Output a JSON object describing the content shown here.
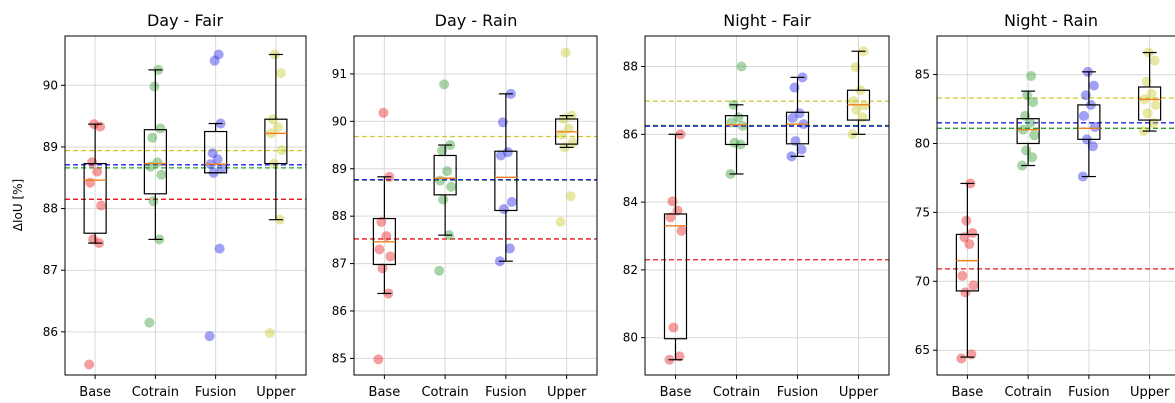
{
  "figure": {
    "ylabel": "ΔIoU [%]"
  },
  "colors": {
    "Base": "#e8181c",
    "Cotrain": "#2e9a2e",
    "Fusion": "#1f1fe8",
    "Upper": "#c9c928",
    "median": "#f07f1c",
    "box": "#000000",
    "grid": "#d9d9d9"
  },
  "chart_data": [
    {
      "type": "box+strip",
      "title": "Day - Fair",
      "categories": [
        "Base",
        "Cotrain",
        "Fusion",
        "Upper"
      ],
      "ylim": [
        85.3,
        90.8
      ],
      "yticks": [
        86,
        87,
        88,
        89,
        90
      ],
      "grid": true,
      "reference_lines": {
        "Base": 88.15,
        "Cotrain": 88.66,
        "Fusion": 88.71,
        "Upper": 88.94
      },
      "boxes": [
        {
          "q1": 87.6,
          "median": 88.46,
          "q3": 88.73,
          "whisker_low": 87.44,
          "whisker_high": 89.37
        },
        {
          "q1": 88.24,
          "median": 88.73,
          "q3": 89.28,
          "whisker_low": 87.5,
          "whisker_high": 90.25
        },
        {
          "q1": 88.58,
          "median": 88.72,
          "q3": 89.25,
          "whisker_low": 88.58,
          "whisker_high": 89.38
        },
        {
          "q1": 88.73,
          "median": 89.22,
          "q3": 89.45,
          "whisker_low": 87.82,
          "whisker_high": 90.5
        }
      ],
      "points": [
        [
          85.47,
          87.44,
          87.5,
          88.05,
          88.42,
          88.6,
          88.75,
          89.33,
          89.37
        ],
        [
          86.15,
          87.5,
          88.12,
          88.55,
          88.68,
          88.75,
          89.15,
          89.3,
          89.98,
          90.25
        ],
        [
          85.93,
          87.35,
          88.58,
          88.65,
          88.72,
          88.8,
          88.9,
          89.38,
          90.4,
          90.5
        ],
        [
          85.98,
          87.82,
          88.73,
          88.95,
          89.22,
          89.32,
          89.45,
          90.2,
          90.5
        ]
      ]
    },
    {
      "type": "box+strip",
      "title": "Day - Rain",
      "categories": [
        "Base",
        "Cotrain",
        "Fusion",
        "Upper"
      ],
      "ylim": [
        84.65,
        91.8
      ],
      "yticks": [
        85,
        86,
        87,
        88,
        89,
        90,
        91
      ],
      "grid": true,
      "reference_lines": {
        "Base": 87.52,
        "Cotrain": 88.76,
        "Fusion": 88.77,
        "Upper": 89.68
      },
      "boxes": [
        {
          "q1": 86.98,
          "median": 87.46,
          "q3": 87.95,
          "whisker_low": 86.37,
          "whisker_high": 88.83
        },
        {
          "q1": 88.45,
          "median": 88.8,
          "q3": 89.28,
          "whisker_low": 87.6,
          "whisker_high": 89.5
        },
        {
          "q1": 88.12,
          "median": 88.82,
          "q3": 89.37,
          "whisker_low": 87.05,
          "whisker_high": 90.58
        },
        {
          "q1": 89.52,
          "median": 89.78,
          "q3": 90.05,
          "whisker_low": 89.45,
          "whisker_high": 90.12
        }
      ],
      "points": [
        [
          84.98,
          86.37,
          86.9,
          87.15,
          87.3,
          87.58,
          87.88,
          88.83,
          90.18
        ],
        [
          86.85,
          87.6,
          88.35,
          88.62,
          88.75,
          88.95,
          89.38,
          89.5,
          90.78
        ],
        [
          87.05,
          87.32,
          88.15,
          88.3,
          89.28,
          89.35,
          89.98,
          90.58
        ],
        [
          87.88,
          88.42,
          89.45,
          89.55,
          89.72,
          89.85,
          90.05,
          90.12,
          91.45
        ]
      ]
    },
    {
      "type": "box+strip",
      "title": "Night - Fair",
      "categories": [
        "Base",
        "Cotrain",
        "Fusion",
        "Upper"
      ],
      "ylim": [
        78.9,
        88.9
      ],
      "yticks": [
        80,
        82,
        84,
        86,
        88
      ],
      "grid": true,
      "reference_lines": {
        "Base": 82.3,
        "Cotrain": 86.26,
        "Fusion": 86.24,
        "Upper": 86.98
      },
      "boxes": [
        {
          "q1": 79.97,
          "median": 83.3,
          "q3": 83.65,
          "whisker_low": 79.35,
          "whisker_high": 86.0
        },
        {
          "q1": 85.7,
          "median": 86.28,
          "q3": 86.55,
          "whisker_low": 84.83,
          "whisker_high": 86.87
        },
        {
          "q1": 85.72,
          "median": 86.3,
          "q3": 86.65,
          "whisker_low": 85.35,
          "whisker_high": 87.68
        },
        {
          "q1": 86.42,
          "median": 86.87,
          "q3": 87.3,
          "whisker_low": 86.0,
          "whisker_high": 88.45
        }
      ],
      "points": [
        [
          79.35,
          79.45,
          80.3,
          83.15,
          83.55,
          83.75,
          84.02,
          86.0
        ],
        [
          84.83,
          85.7,
          85.75,
          86.25,
          86.35,
          86.5,
          86.87,
          88.0
        ],
        [
          85.35,
          85.55,
          85.8,
          86.3,
          86.48,
          86.62,
          87.38,
          87.68
        ],
        [
          86.0,
          86.5,
          86.72,
          86.85,
          86.98,
          87.3,
          87.98,
          88.45
        ]
      ]
    },
    {
      "type": "box+strip",
      "title": "Night - Rain",
      "categories": [
        "Base",
        "Cotrain",
        "Fusion",
        "Upper"
      ],
      "ylim": [
        63.2,
        87.8
      ],
      "yticks": [
        65,
        70,
        75,
        80,
        85
      ],
      "grid": true,
      "reference_lines": {
        "Base": 70.9,
        "Cotrain": 81.1,
        "Fusion": 81.5,
        "Upper": 83.3
      },
      "boxes": [
        {
          "q1": 69.3,
          "median": 71.5,
          "q3": 73.4,
          "whisker_low": 64.5,
          "whisker_high": 77.1
        },
        {
          "q1": 80.0,
          "median": 81.0,
          "q3": 81.8,
          "whisker_low": 78.4,
          "whisker_high": 83.8
        },
        {
          "q1": 80.3,
          "median": 81.1,
          "q3": 82.8,
          "whisker_low": 77.6,
          "whisker_high": 85.2
        },
        {
          "q1": 81.7,
          "median": 83.2,
          "q3": 84.1,
          "whisker_low": 80.9,
          "whisker_high": 86.6
        }
      ],
      "points": [
        [
          64.4,
          64.7,
          69.2,
          69.7,
          70.4,
          72.7,
          73.2,
          73.5,
          74.4,
          77.1
        ],
        [
          78.4,
          79.0,
          79.5,
          80.6,
          81.0,
          81.5,
          82.0,
          83.0,
          83.5,
          84.9
        ],
        [
          77.6,
          79.8,
          80.3,
          81.2,
          82.0,
          82.8,
          83.5,
          84.2,
          85.2
        ],
        [
          80.9,
          81.5,
          82.2,
          82.8,
          83.2,
          83.6,
          84.5,
          86.0,
          86.6
        ]
      ]
    }
  ]
}
